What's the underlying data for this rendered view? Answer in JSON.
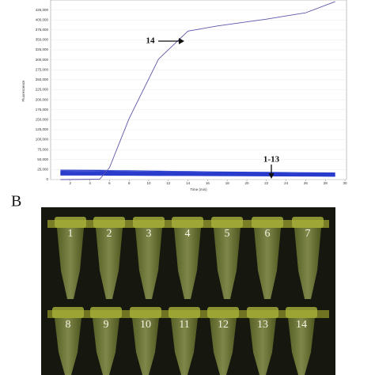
{
  "chart_data": {
    "type": "line",
    "xlabel": "Time (min)",
    "ylabel": "Fluorescence",
    "x": [
      1,
      5,
      6,
      8,
      11,
      14,
      17,
      22,
      26,
      29
    ],
    "series": [
      {
        "color": "#5a55aa",
        "values": [
          0,
          1000,
          30000,
          153000,
          302000,
          372000,
          385000,
          402000,
          418000,
          446000
        ]
      },
      {
        "color": "#2a3ccc",
        "values": [
          24000,
          23500,
          23000,
          22500,
          21500,
          20500,
          19500,
          18500,
          17500,
          17000
        ]
      },
      {
        "color": "#2a3ccc",
        "values": [
          22500,
          22000,
          21500,
          21000,
          20000,
          19000,
          18500,
          17500,
          16500,
          16000
        ]
      },
      {
        "color": "#2a3ccc",
        "values": [
          21000,
          20500,
          20000,
          19500,
          19000,
          18000,
          17500,
          16500,
          15500,
          15000
        ]
      },
      {
        "color": "#2a3ccc",
        "values": [
          20000,
          19500,
          19500,
          19000,
          18000,
          17500,
          16500,
          15500,
          14500,
          14000
        ]
      },
      {
        "color": "#2a3ccc",
        "values": [
          19000,
          18500,
          18500,
          18000,
          17000,
          16500,
          15500,
          14500,
          14000,
          13000
        ]
      },
      {
        "color": "#2a3ccc",
        "values": [
          18000,
          17500,
          17500,
          17000,
          16500,
          15500,
          15000,
          14000,
          13000,
          12500
        ]
      },
      {
        "color": "#2a3ccc",
        "values": [
          17000,
          16500,
          16500,
          16000,
          15500,
          15000,
          14000,
          13000,
          12500,
          12000
        ]
      },
      {
        "color": "#2a3ccc",
        "values": [
          16000,
          15500,
          15500,
          15000,
          14500,
          14000,
          13500,
          12500,
          11500,
          11000
        ]
      },
      {
        "color": "#2a3ccc",
        "values": [
          15000,
          15000,
          14500,
          14000,
          14000,
          13500,
          12500,
          12000,
          11000,
          10500
        ]
      },
      {
        "color": "#2a3ccc",
        "values": [
          14000,
          14000,
          13500,
          13000,
          13000,
          12500,
          12000,
          11000,
          10500,
          10000
        ]
      },
      {
        "color": "#2a3ccc",
        "values": [
          13000,
          13000,
          12500,
          12500,
          12000,
          11500,
          11000,
          10500,
          9500,
          9000
        ]
      },
      {
        "color": "#2a3ccc",
        "values": [
          12000,
          12000,
          11500,
          11500,
          11000,
          10500,
          10000,
          9500,
          9000,
          8500
        ]
      },
      {
        "color": "#2a3ccc",
        "values": [
          11000,
          11000,
          10500,
          10500,
          10000,
          10000,
          9500,
          9000,
          8500,
          8000
        ]
      }
    ],
    "xlim": [
      0,
      30
    ],
    "xticks": [
      2,
      4,
      6,
      8,
      10,
      12,
      14,
      16,
      18,
      20,
      22,
      24,
      26,
      28,
      30
    ],
    "ylim": [
      0,
      450000
    ],
    "yticks": [
      0,
      {
        "value": 25000,
        "label": "25,000"
      },
      {
        "value": 50000,
        "label": "50,000"
      },
      {
        "value": 75000,
        "label": "75,000"
      },
      {
        "value": 100000,
        "label": "100,000"
      },
      {
        "value": 125000,
        "label": "125,000"
      },
      {
        "value": 150000,
        "label": "150,000"
      },
      {
        "value": 175000,
        "label": "175,000"
      },
      {
        "value": 200000,
        "label": "200,000"
      },
      {
        "value": 225000,
        "label": "225,000"
      },
      {
        "value": 250000,
        "label": "250,000"
      },
      {
        "value": 275000,
        "label": "275,000"
      },
      {
        "value": 300000,
        "label": "300,000"
      },
      {
        "value": 325000,
        "label": "325,000"
      },
      {
        "value": 350000,
        "label": "350,000"
      },
      {
        "value": 375000,
        "label": "375,000"
      },
      {
        "value": 400000,
        "label": "400,000"
      },
      {
        "value": 425000,
        "label": "425,000"
      }
    ],
    "grid": true,
    "annotations": [
      "14",
      "1-13"
    ]
  },
  "photo": {
    "panel_label": "B",
    "tube_labels": [
      "1",
      "2",
      "3",
      "4",
      "5",
      "6",
      "7",
      "8",
      "9",
      "10",
      "11",
      "12",
      "13",
      "14"
    ]
  }
}
